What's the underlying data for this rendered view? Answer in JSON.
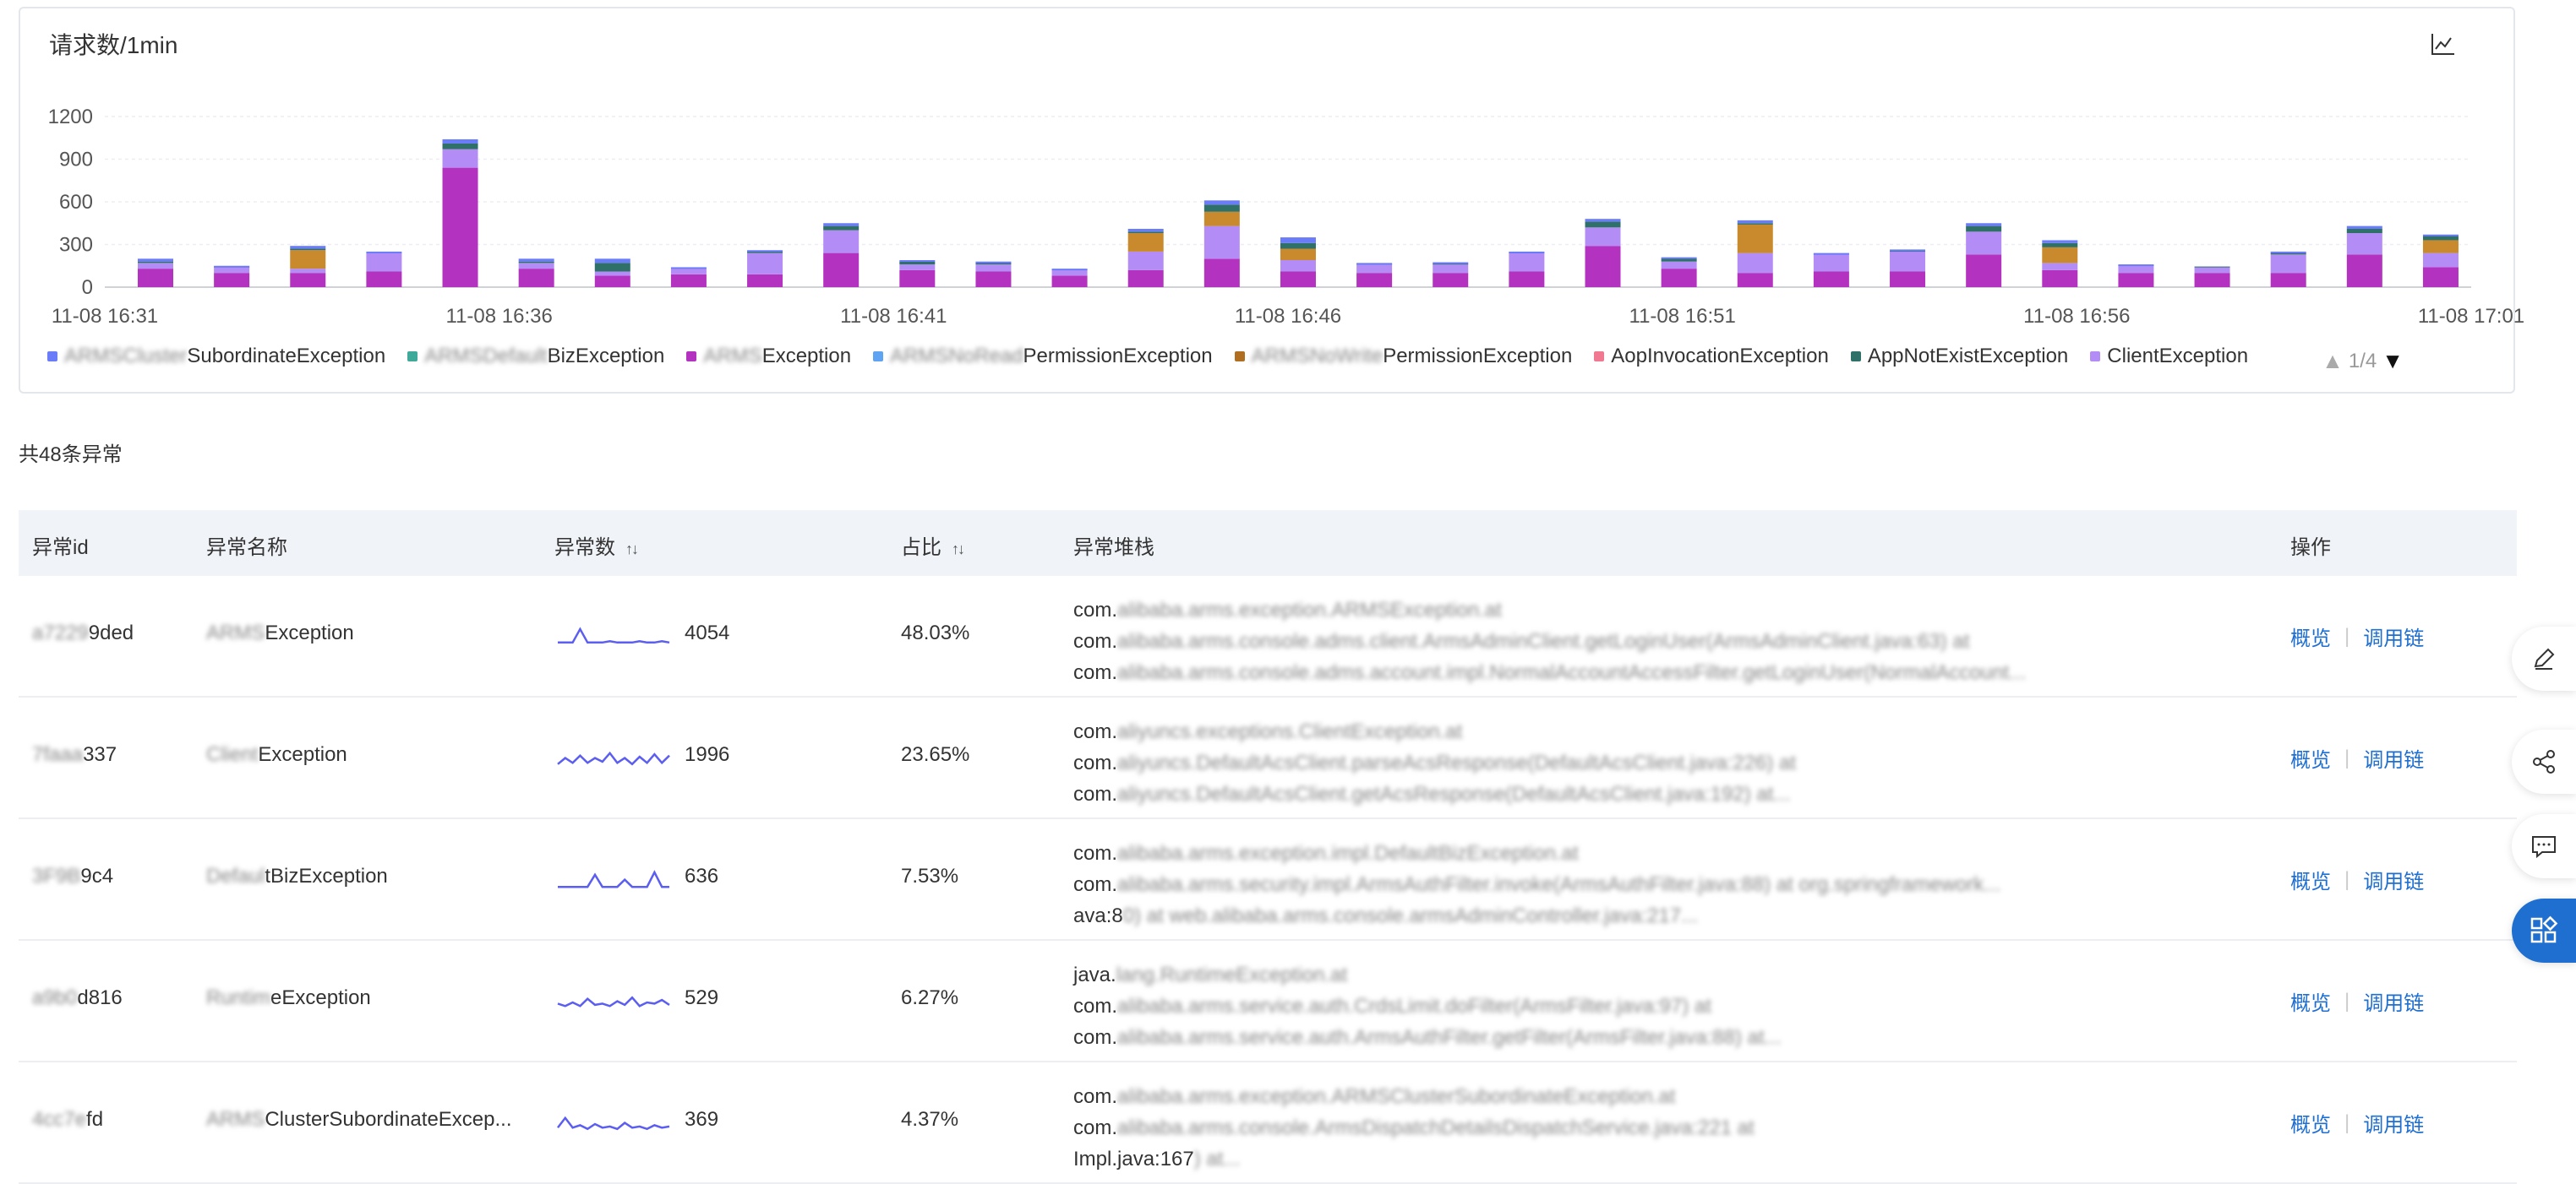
{
  "chart": {
    "title": "请求数/1min",
    "toolbar_icon": "line-chart-icon",
    "pager": {
      "text": "1/4"
    }
  },
  "chart_data": {
    "type": "bar",
    "stacked": true,
    "ylim": [
      0,
      1200
    ],
    "yticks": [
      0,
      300,
      600,
      900,
      1200
    ],
    "xticks": [
      "11-08 16:31",
      "11-08 16:36",
      "11-08 16:41",
      "11-08 16:46",
      "11-08 16:51",
      "11-08 16:56",
      "11-08 17:01"
    ],
    "grid": true,
    "legend_position": "bottom",
    "colors": {
      "SubordinateException": "#6a7cf7",
      "BizException": "#3fa99a",
      "Exception": "#b432c0",
      "PermissionException": "#5ea4f3",
      "PermissionException2": "#b06f20",
      "AopInvocationException": "#f07891",
      "AppNotExistException": "#2f7068",
      "ClientException": "#b48cf6",
      "Other": "#c88a2c"
    },
    "legend": [
      {
        "prefix": "ARMSCluster",
        "suffix": "SubordinateException",
        "color": "#6a7cf7"
      },
      {
        "prefix": "ARMSDefault",
        "suffix": "BizException",
        "color": "#3fa99a"
      },
      {
        "prefix": "ARMS",
        "suffix": "Exception",
        "color": "#b432c0"
      },
      {
        "prefix": "ARMSNoRead",
        "suffix": "PermissionException",
        "color": "#5ea4f3"
      },
      {
        "prefix": "ARMSNoWrite",
        "suffix": "PermissionException",
        "color": "#b06f20"
      },
      {
        "prefix": "",
        "suffix": "AopInvocationException",
        "color": "#f07891"
      },
      {
        "prefix": "",
        "suffix": "AppNotExistException",
        "color": "#2f7068"
      },
      {
        "prefix": "",
        "suffix": "ClientException",
        "color": "#b48cf6"
      }
    ],
    "bars": [
      {
        "ex": 130,
        "client": 40,
        "other": 0,
        "green": 10,
        "total": 200
      },
      {
        "ex": 100,
        "client": 40,
        "other": 0,
        "green": 5,
        "total": 150
      },
      {
        "ex": 100,
        "client": 30,
        "other": 130,
        "green": 10,
        "total": 290
      },
      {
        "ex": 110,
        "client": 130,
        "other": 0,
        "green": 0,
        "total": 250
      },
      {
        "ex": 840,
        "client": 130,
        "other": 0,
        "green": 40,
        "total": 1040
      },
      {
        "ex": 130,
        "client": 40,
        "other": 0,
        "green": 10,
        "total": 200
      },
      {
        "ex": 80,
        "client": 30,
        "other": 0,
        "green": 60,
        "total": 200
      },
      {
        "ex": 90,
        "client": 40,
        "other": 0,
        "green": 0,
        "total": 140
      },
      {
        "ex": 90,
        "client": 150,
        "other": 0,
        "green": 10,
        "total": 260
      },
      {
        "ex": 240,
        "client": 160,
        "other": 0,
        "green": 30,
        "total": 450
      },
      {
        "ex": 120,
        "client": 40,
        "other": 0,
        "green": 20,
        "total": 190
      },
      {
        "ex": 110,
        "client": 50,
        "other": 0,
        "green": 10,
        "total": 180
      },
      {
        "ex": 80,
        "client": 40,
        "other": 0,
        "green": 5,
        "total": 130
      },
      {
        "ex": 120,
        "client": 130,
        "other": 130,
        "green": 10,
        "total": 410
      },
      {
        "ex": 200,
        "client": 230,
        "other": 100,
        "green": 50,
        "total": 610
      },
      {
        "ex": 110,
        "client": 80,
        "other": 80,
        "green": 40,
        "total": 350
      },
      {
        "ex": 100,
        "client": 60,
        "other": 0,
        "green": 5,
        "total": 170
      },
      {
        "ex": 100,
        "client": 60,
        "other": 0,
        "green": 5,
        "total": 175
      },
      {
        "ex": 110,
        "client": 130,
        "other": 0,
        "green": 5,
        "total": 250
      },
      {
        "ex": 290,
        "client": 130,
        "other": 0,
        "green": 40,
        "total": 480
      },
      {
        "ex": 130,
        "client": 50,
        "other": 0,
        "green": 20,
        "total": 210
      },
      {
        "ex": 100,
        "client": 140,
        "other": 200,
        "green": 10,
        "total": 470
      },
      {
        "ex": 110,
        "client": 120,
        "other": 0,
        "green": 5,
        "total": 240
      },
      {
        "ex": 110,
        "client": 140,
        "other": 0,
        "green": 5,
        "total": 265
      },
      {
        "ex": 230,
        "client": 160,
        "other": 0,
        "green": 40,
        "total": 450
      },
      {
        "ex": 120,
        "client": 50,
        "other": 110,
        "green": 30,
        "total": 330
      },
      {
        "ex": 100,
        "client": 50,
        "other": 0,
        "green": 5,
        "total": 160
      },
      {
        "ex": 100,
        "client": 40,
        "other": 0,
        "green": 5,
        "total": 145
      },
      {
        "ex": 100,
        "client": 130,
        "other": 0,
        "green": 10,
        "total": 250
      },
      {
        "ex": 230,
        "client": 150,
        "other": 0,
        "green": 30,
        "total": 430
      },
      {
        "ex": 140,
        "client": 100,
        "other": 90,
        "green": 30,
        "total": 370
      }
    ]
  },
  "summary": {
    "count_text": "共48条异常"
  },
  "table": {
    "headers": {
      "id": "异常id",
      "name": "异常名称",
      "count": "异常数",
      "ratio": "占比",
      "stack": "异常堆栈",
      "ops": "操作"
    },
    "rows": [
      {
        "id_blur": "a7229",
        "id_clear": "9ded",
        "name_blur": "ARMS",
        "name_clear": "Exception",
        "spark": [
          5,
          5,
          5,
          16,
          5,
          5,
          5,
          6,
          5,
          5,
          5,
          6,
          5,
          5,
          6,
          5
        ],
        "count": "4054",
        "pct": "48.03%",
        "stack": [
          {
            "clear": "com.",
            "blur": "alibaba.arms.exception.ARMSException.at"
          },
          {
            "clear": "com.",
            "blur": "alibaba.arms.console.adms.client.ArmsAdminClient.getLoginUser(ArmsAdminClient.java:63) at"
          },
          {
            "clear": "com.",
            "blur": "alibaba.arms.console.adms.account.impl.NormalAccountAccessFilter.getLoginUser(NormalAccount..."
          }
        ],
        "op1": "概览",
        "op2": "调用链"
      },
      {
        "id_blur": "7faaa",
        "id_clear": "337",
        "name_blur": "Client",
        "name_clear": "Exception",
        "spark": [
          5,
          10,
          6,
          12,
          6,
          10,
          7,
          14,
          6,
          10,
          5,
          11,
          6,
          13,
          6,
          12
        ],
        "count": "1996",
        "pct": "23.65%",
        "stack": [
          {
            "clear": "com.",
            "blur": "aliyuncs.exceptions.ClientException.at"
          },
          {
            "clear": "com.",
            "blur": "aliyuncs.DefaultAcsClient.parseAcsResponse(DefaultAcsClient.java:226) at"
          },
          {
            "clear": "com.",
            "blur": "aliyuncs.DefaultAcsClient.getAcsResponse(DefaultAcsClient.java:192) at..."
          }
        ],
        "op1": "概览",
        "op2": "调用链"
      },
      {
        "id_blur": "3F9B",
        "id_clear": "9c4",
        "name_blur": "Defaul",
        "name_clear": "tBizException",
        "spark": [
          4,
          4,
          4,
          4,
          4,
          14,
          4,
          4,
          4,
          10,
          4,
          4,
          4,
          16,
          4,
          4
        ],
        "count": "636",
        "pct": "7.53%",
        "stack": [
          {
            "clear": "com.",
            "blur": "alibaba.arms.exception.impl.DefaultBizException.at"
          },
          {
            "clear": "com.",
            "blur": "alibaba.arms.security.impl.ArmsAuthFilter.invoke(ArmsAuthFilter.java:88) at org.springframework..."
          },
          {
            "clear": "ava:8",
            "blur": "0) at web.alibaba.arms.console.armsAdminController.java:217..."
          }
        ],
        "op1": "概览",
        "op2": "调用链"
      },
      {
        "id_blur": "a9b0",
        "id_clear": "d816",
        "name_blur": "Runtim",
        "name_clear": "eException",
        "spark": [
          8,
          6,
          9,
          6,
          12,
          7,
          8,
          6,
          10,
          7,
          13,
          6,
          9,
          8,
          11,
          7
        ],
        "count": "529",
        "pct": "6.27%",
        "stack": [
          {
            "clear": "java.",
            "blur": "lang.RuntimeException.at"
          },
          {
            "clear": "com.",
            "blur": "alibaba.arms.service.auth.CrdsLimit.doFilter(ArmsFilter.java:97) at"
          },
          {
            "clear": "com.",
            "blur": "alibaba.arms.service.auth.ArmsAuthFilter.getFilter(ArmsFilter.java:88) at..."
          }
        ],
        "op1": "概览",
        "op2": "调用链"
      },
      {
        "id_blur": "4cc7e",
        "id_clear": "fd",
        "name_blur": "ARMS",
        "name_clear": "ClusterSubordinateExcep...",
        "spark": [
          6,
          14,
          6,
          8,
          5,
          9,
          6,
          7,
          5,
          10,
          6,
          7,
          5,
          8,
          6,
          7
        ],
        "count": "369",
        "pct": "4.37%",
        "stack": [
          {
            "clear": "com.",
            "blur": "alibaba.arms.exception.ARMSClusterSubordinateException.at"
          },
          {
            "clear": "com.",
            "blur": "alibaba.arms.console.ArmsDispatchDetailsDispatchService.java:221 at"
          },
          {
            "clear": "Impl.java:167",
            "blur": ") at..."
          }
        ],
        "op1": "概览",
        "op2": "调用链"
      }
    ]
  },
  "side_buttons": [
    "edit-icon",
    "share-icon",
    "comment-icon",
    "apps-icon"
  ]
}
